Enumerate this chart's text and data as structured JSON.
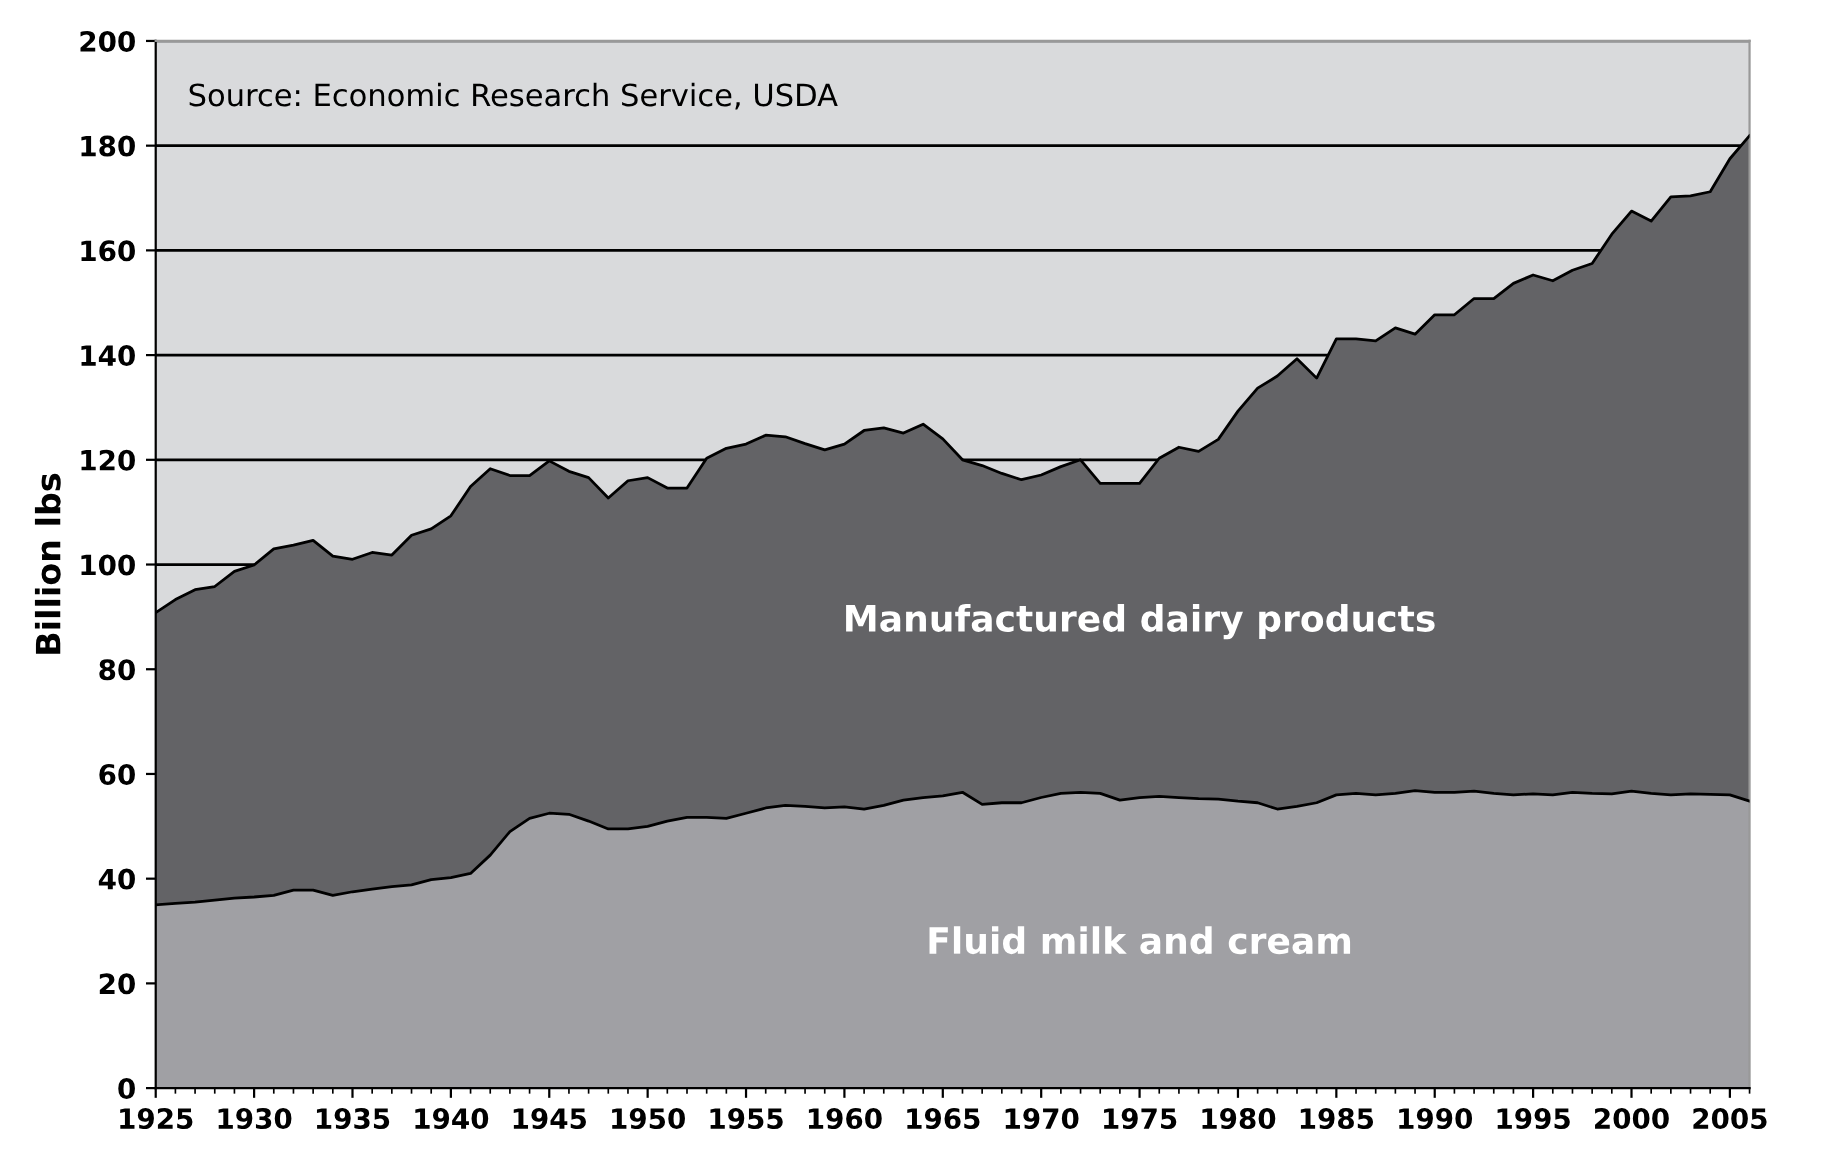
{
  "chart_data": {
    "type": "area",
    "stacked": true,
    "ylabel": "Billion lbs",
    "annotations": [
      "Source: Economic Research Service, USDA"
    ],
    "x": [
      1925,
      1926,
      1927,
      1928,
      1929,
      1930,
      1931,
      1932,
      1933,
      1934,
      1935,
      1936,
      1937,
      1938,
      1939,
      1940,
      1941,
      1942,
      1943,
      1944,
      1945,
      1946,
      1947,
      1948,
      1949,
      1950,
      1951,
      1952,
      1953,
      1954,
      1955,
      1956,
      1957,
      1958,
      1959,
      1960,
      1961,
      1962,
      1963,
      1964,
      1965,
      1966,
      1967,
      1968,
      1969,
      1970,
      1971,
      1972,
      1973,
      1974,
      1975,
      1976,
      1977,
      1978,
      1979,
      1980,
      1981,
      1982,
      1983,
      1984,
      1985,
      1986,
      1987,
      1988,
      1989,
      1990,
      1991,
      1992,
      1993,
      1994,
      1995,
      1996,
      1997,
      1998,
      1999,
      2000,
      2001,
      2002,
      2003,
      2004,
      2005,
      2006
    ],
    "series": [
      {
        "name": "Fluid milk and cream",
        "color": "#a0a0a4",
        "values": [
          35.0,
          35.3,
          35.5,
          35.9,
          36.3,
          36.5,
          36.8,
          37.8,
          37.8,
          36.8,
          37.5,
          38.0,
          38.5,
          38.8,
          39.8,
          40.2,
          41.0,
          44.5,
          49.0,
          51.5,
          52.5,
          52.3,
          51.0,
          49.5,
          49.5,
          50.0,
          51.0,
          51.7,
          51.7,
          51.5,
          52.5,
          53.5,
          54.0,
          53.8,
          53.5,
          53.7,
          53.3,
          54.0,
          55.0,
          55.5,
          55.8,
          56.5,
          54.2,
          54.5,
          54.5,
          55.5,
          56.3,
          56.5,
          56.3,
          55.0,
          55.5,
          55.7,
          55.5,
          55.3,
          55.2,
          54.8,
          54.5,
          53.3,
          53.8,
          54.5,
          56.0,
          56.3,
          56.0,
          56.3,
          56.8,
          56.5,
          56.5,
          56.7,
          56.3,
          56.0,
          56.2,
          56.0,
          56.5,
          56.3,
          56.2,
          56.7,
          56.3,
          56.0,
          56.2,
          56.1,
          56.0,
          54.8
        ]
      },
      {
        "name": "Manufactured dairy products",
        "color": "#636366",
        "values": [
          55.8,
          58.0,
          59.7,
          59.9,
          62.4,
          63.4,
          66.2,
          65.9,
          66.8,
          64.8,
          63.5,
          64.3,
          63.3,
          66.8,
          67.0,
          69.1,
          73.9,
          73.8,
          68.0,
          65.5,
          67.3,
          65.5,
          65.6,
          63.2,
          66.5,
          66.6,
          63.6,
          62.9,
          68.6,
          70.7,
          70.5,
          71.2,
          70.4,
          69.3,
          68.4,
          69.3,
          72.3,
          72.1,
          70.1,
          71.3,
          68.2,
          63.5,
          64.7,
          62.9,
          61.7,
          61.6,
          62.4,
          63.5,
          59.2,
          60.5,
          60.0,
          64.6,
          66.9,
          66.3,
          68.7,
          74.5,
          79.2,
          82.7,
          85.5,
          81.1,
          87.1,
          86.8,
          86.7,
          88.9,
          87.2,
          91.2,
          91.2,
          94.1,
          94.5,
          97.7,
          99.1,
          98.2,
          99.7,
          101.2,
          106.9,
          110.8,
          109.3,
          114.2,
          114.2,
          115.1,
          121.5,
          127.1
        ]
      }
    ],
    "xlim": [
      1925,
      2006
    ],
    "xticks": [
      1925,
      1930,
      1935,
      1940,
      1945,
      1950,
      1955,
      1960,
      1965,
      1970,
      1975,
      1980,
      1985,
      1990,
      1995,
      2000,
      2005
    ],
    "ylim": [
      0,
      200
    ],
    "yticks": [
      0,
      20,
      40,
      60,
      80,
      100,
      120,
      140,
      160,
      180,
      200
    ],
    "grid": "y",
    "legend": false
  }
}
